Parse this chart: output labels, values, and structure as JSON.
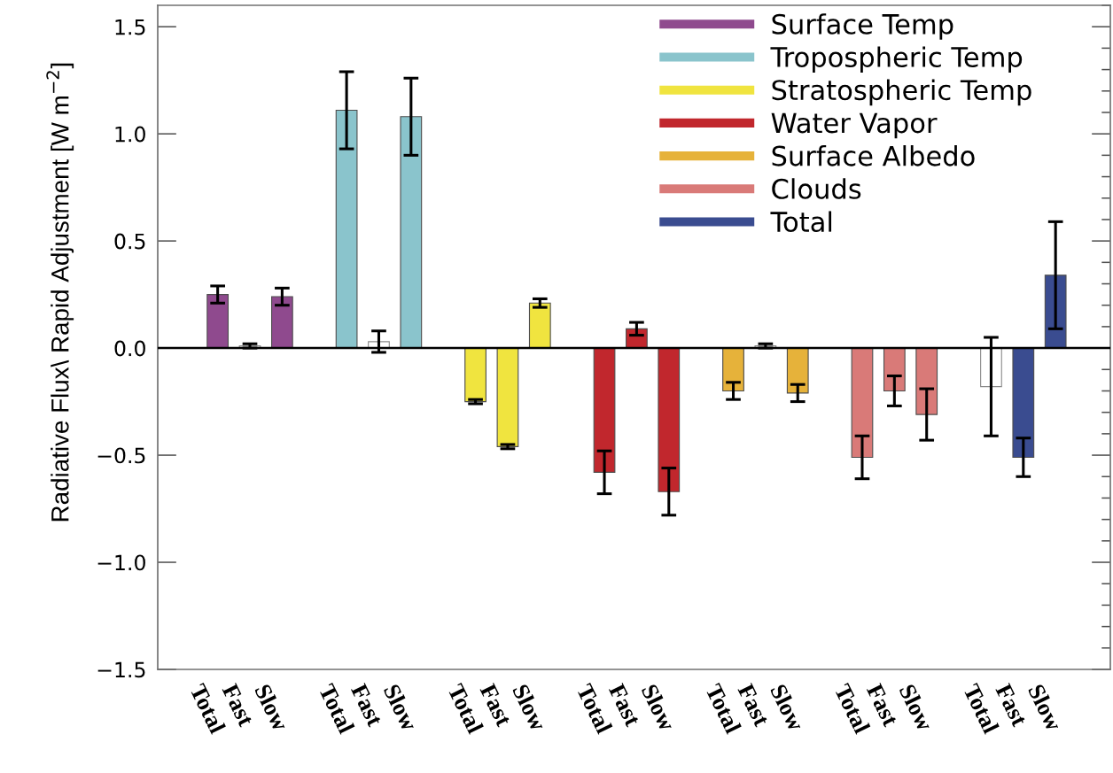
{
  "chart_data": {
    "type": "bar",
    "ylabel": "Radiative Flux\\ Rapid Adjustment [W m$^{−2}$]",
    "categories": [
      "Total",
      "Fast",
      "Slow",
      null,
      "Total",
      "Fast",
      "Slow",
      null,
      "Total",
      "Fast",
      "Slow",
      null,
      "Total",
      "Fast",
      "Slow",
      null,
      "Total",
      "Fast",
      "Slow",
      null,
      "Total",
      "Fast",
      "Slow",
      null,
      "Total",
      "Fast",
      "Slow"
    ],
    "series": [
      {
        "name": "Surface Temp",
        "color": "#8f4a8e",
        "values": [
          0.25,
          0.01,
          0.24,
          null,
          null,
          null,
          null,
          null,
          null,
          null,
          null,
          null,
          null,
          null,
          null,
          null,
          null,
          null,
          null,
          null,
          null,
          null,
          null,
          null,
          null,
          null,
          null
        ],
        "colors": [
          "#8f4a8e",
          "#ffffff",
          "#8f4a8e",
          null,
          null,
          null,
          null,
          null,
          null,
          null,
          null,
          null,
          null,
          null,
          null,
          null,
          null,
          null,
          null,
          null,
          null,
          null,
          null,
          null,
          null,
          null,
          null
        ],
        "errors": [
          0.04,
          0.01,
          0.04,
          null,
          null,
          null,
          null,
          null,
          null,
          null,
          null,
          null,
          null,
          null,
          null,
          null,
          null,
          null,
          null,
          null,
          null,
          null,
          null,
          null,
          null,
          null,
          null
        ]
      },
      {
        "name": "Tropospheric Temp",
        "color": "#8ac4cc",
        "values": [
          null,
          null,
          null,
          null,
          1.11,
          0.03,
          1.08,
          null,
          null,
          null,
          null,
          null,
          null,
          null,
          null,
          null,
          null,
          null,
          null,
          null,
          null,
          null,
          null,
          null,
          null,
          null,
          null
        ],
        "colors": [
          null,
          null,
          null,
          null,
          "#8ac4cc",
          "#ffffff",
          "#8ac4cc",
          null,
          null,
          null,
          null,
          null,
          null,
          null,
          null,
          null,
          null,
          null,
          null,
          null,
          null,
          null,
          null,
          null,
          null,
          null,
          null
        ],
        "errors": [
          null,
          null,
          null,
          null,
          0.18,
          0.05,
          0.18,
          null,
          null,
          null,
          null,
          null,
          null,
          null,
          null,
          null,
          null,
          null,
          null,
          null,
          null,
          null,
          null,
          null,
          null,
          null,
          null
        ]
      },
      {
        "name": "Stratospheric Temp",
        "color": "#f0e43f",
        "values": [
          null,
          null,
          null,
          null,
          null,
          null,
          null,
          null,
          -0.25,
          -0.46,
          0.21,
          null,
          null,
          null,
          null,
          null,
          null,
          null,
          null,
          null,
          null,
          null,
          null,
          null,
          null,
          null,
          null
        ],
        "errors": [
          null,
          null,
          null,
          null,
          null,
          null,
          null,
          null,
          0.01,
          0.01,
          0.02,
          null,
          null,
          null,
          null,
          null,
          null,
          null,
          null,
          null,
          null,
          null,
          null,
          null,
          null,
          null,
          null
        ]
      },
      {
        "name": "Water Vapor",
        "color": "#c1272d",
        "values": [
          null,
          null,
          null,
          null,
          null,
          null,
          null,
          null,
          null,
          null,
          null,
          null,
          -0.58,
          0.09,
          -0.67,
          null,
          null,
          null,
          null,
          null,
          null,
          null,
          null,
          null,
          null,
          null,
          null
        ],
        "errors": [
          null,
          null,
          null,
          null,
          null,
          null,
          null,
          null,
          null,
          null,
          null,
          null,
          0.1,
          0.03,
          0.11,
          null,
          null,
          null,
          null,
          null,
          null,
          null,
          null,
          null,
          null,
          null,
          null
        ]
      },
      {
        "name": "Surface Albedo",
        "color": "#e6b23a",
        "values": [
          null,
          null,
          null,
          null,
          null,
          null,
          null,
          null,
          null,
          null,
          null,
          null,
          null,
          null,
          null,
          null,
          -0.2,
          0.01,
          -0.21,
          null,
          null,
          null,
          null,
          null,
          null,
          null,
          null
        ],
        "colors": [
          null,
          null,
          null,
          null,
          null,
          null,
          null,
          null,
          null,
          null,
          null,
          null,
          null,
          null,
          null,
          null,
          "#e6b23a",
          "#ffffff",
          "#e6b23a",
          null,
          null,
          null,
          null,
          null,
          null,
          null,
          null
        ],
        "errors": [
          null,
          null,
          null,
          null,
          null,
          null,
          null,
          null,
          null,
          null,
          null,
          null,
          null,
          null,
          null,
          null,
          0.04,
          0.01,
          0.04,
          null,
          null,
          null,
          null,
          null,
          null,
          null,
          null
        ]
      },
      {
        "name": "Clouds",
        "color": "#d97a78",
        "values": [
          null,
          null,
          null,
          null,
          null,
          null,
          null,
          null,
          null,
          null,
          null,
          null,
          null,
          null,
          null,
          null,
          null,
          null,
          null,
          null,
          -0.51,
          -0.2,
          -0.31,
          null,
          null,
          null,
          null
        ],
        "errors": [
          null,
          null,
          null,
          null,
          null,
          null,
          null,
          null,
          null,
          null,
          null,
          null,
          null,
          null,
          null,
          null,
          null,
          null,
          null,
          null,
          0.1,
          0.07,
          0.12,
          null,
          null,
          null,
          null
        ]
      },
      {
        "name": "Total",
        "color": "#3a4c90",
        "values": [
          null,
          null,
          null,
          null,
          null,
          null,
          null,
          null,
          null,
          null,
          null,
          null,
          null,
          null,
          null,
          null,
          null,
          null,
          null,
          null,
          null,
          null,
          null,
          null,
          -0.18,
          -0.51,
          0.34
        ],
        "colors": [
          null,
          null,
          null,
          null,
          null,
          null,
          null,
          null,
          null,
          null,
          null,
          null,
          null,
          null,
          null,
          null,
          null,
          null,
          null,
          null,
          null,
          null,
          null,
          null,
          "#ffffff",
          "#3a4c90",
          "#3a4c90"
        ],
        "errors": [
          null,
          null,
          null,
          null,
          null,
          null,
          null,
          null,
          null,
          null,
          null,
          null,
          null,
          null,
          null,
          null,
          null,
          null,
          null,
          null,
          null,
          null,
          null,
          null,
          0.23,
          0.09,
          0.25
        ]
      }
    ],
    "ylim": [
      -1.5,
      1.6
    ],
    "yticks": [
      {
        "value": -1.5,
        "label": "−1.5"
      },
      {
        "value": -1.0,
        "label": "−1.0"
      },
      {
        "value": -0.5,
        "label": "−0.5"
      },
      {
        "value": 0,
        "label": "0.0"
      },
      0.5,
      {
        "value": 1.0,
        "label": "1.0"
      },
      1.5
    ],
    "ref_lines": [
      {
        "axis": "y",
        "value": 0,
        "color": "#000000"
      }
    ],
    "legend": "top right"
  }
}
